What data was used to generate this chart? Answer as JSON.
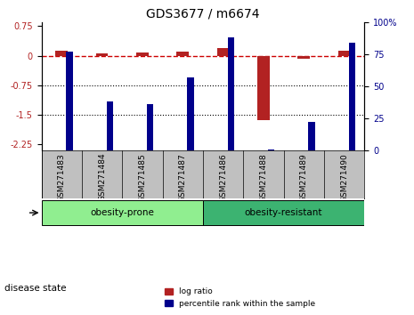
{
  "title": "GDS3677 / m6674",
  "samples": [
    "GSM271483",
    "GSM271484",
    "GSM271485",
    "GSM271487",
    "GSM271486",
    "GSM271488",
    "GSM271489",
    "GSM271490"
  ],
  "log_ratio": [
    0.12,
    0.05,
    0.08,
    0.1,
    0.2,
    -1.62,
    -0.07,
    0.13
  ],
  "percentile_rank": [
    77,
    38,
    36,
    57,
    88,
    1,
    22,
    84
  ],
  "ylim_left": [
    -2.4,
    0.85
  ],
  "ylim_right": [
    0,
    100
  ],
  "yticks_left": [
    0.75,
    0,
    -0.75,
    -1.5,
    -2.25
  ],
  "yticks_right": [
    100,
    75,
    50,
    25,
    0
  ],
  "ytick_right_labels": [
    "100%",
    "75",
    "50",
    "25",
    "0"
  ],
  "disease_state_groups": [
    {
      "label": "obesity-prone",
      "start": 0,
      "end": 4,
      "color": "#90EE90"
    },
    {
      "label": "obesity-resistant",
      "start": 4,
      "end": 8,
      "color": "#3CB371"
    }
  ],
  "bar_width": 0.3,
  "log_ratio_color": "#B22222",
  "percentile_color": "#00008B",
  "background_color": "#ffffff",
  "hline_color": "#CC0000",
  "dotted_line_color": "#000000",
  "sample_bg_color": "#C0C0C0"
}
